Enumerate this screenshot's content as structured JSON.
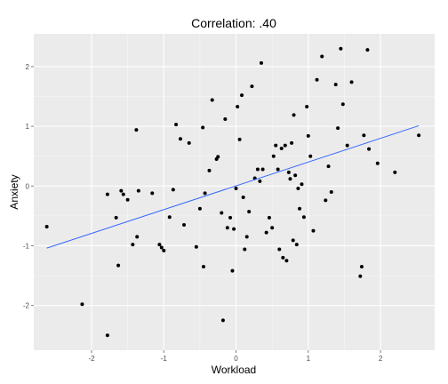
{
  "chart_data": {
    "type": "scatter",
    "title": "Correlation: .40",
    "xlabel": "Workload",
    "ylabel": "Anxiety",
    "xlim": [
      -2.8,
      2.75
    ],
    "ylim": [
      -2.75,
      2.55
    ],
    "x_ticks": [
      -2,
      -1,
      0,
      1,
      2
    ],
    "x_tick_labels": [
      "-2",
      "-1",
      "0",
      "1",
      "2"
    ],
    "y_ticks": [
      -2,
      -1,
      0,
      1,
      2
    ],
    "y_tick_labels": [
      "-2",
      "-1",
      "0",
      "1",
      "2"
    ],
    "grid": true,
    "background_color": "#ebebeb",
    "grid_color": "#ffffff",
    "point_color": "#000000",
    "fit_color": "#3366ff",
    "fit_line": {
      "x": [
        -2.62,
        2.53
      ],
      "y": [
        -1.04,
        1.01
      ]
    },
    "points": [
      [
        -2.62,
        -0.68
      ],
      [
        -2.13,
        -1.98
      ],
      [
        -1.78,
        -2.5
      ],
      [
        -1.78,
        -0.14
      ],
      [
        -1.66,
        -0.53
      ],
      [
        -1.63,
        -1.33
      ],
      [
        -1.59,
        -0.08
      ],
      [
        -1.56,
        -0.14
      ],
      [
        -1.5,
        -0.23
      ],
      [
        -1.43,
        -0.98
      ],
      [
        -1.38,
        0.94
      ],
      [
        -1.37,
        -0.85
      ],
      [
        -1.35,
        -0.08
      ],
      [
        -1.16,
        -0.12
      ],
      [
        -1.06,
        -0.98
      ],
      [
        -1.03,
        -1.03
      ],
      [
        -1.0,
        -1.08
      ],
      [
        -0.92,
        -0.52
      ],
      [
        -0.87,
        -0.06
      ],
      [
        -0.83,
        1.03
      ],
      [
        -0.77,
        0.79
      ],
      [
        -0.72,
        -0.65
      ],
      [
        -0.65,
        0.72
      ],
      [
        -0.55,
        -1.02
      ],
      [
        -0.5,
        -0.38
      ],
      [
        -0.46,
        0.98
      ],
      [
        -0.45,
        -1.35
      ],
      [
        -0.43,
        -0.12
      ],
      [
        -0.37,
        0.26
      ],
      [
        -0.33,
        1.44
      ],
      [
        -0.27,
        0.45
      ],
      [
        -0.25,
        0.49
      ],
      [
        -0.2,
        -0.45
      ],
      [
        -0.18,
        -2.25
      ],
      [
        -0.15,
        1.12
      ],
      [
        -0.12,
        -0.7
      ],
      [
        -0.08,
        -0.53
      ],
      [
        -0.05,
        -1.42
      ],
      [
        -0.03,
        -0.72
      ],
      [
        0.0,
        -0.04
      ],
      [
        0.02,
        1.33
      ],
      [
        0.05,
        0.78
      ],
      [
        0.08,
        1.52
      ],
      [
        0.1,
        -0.19
      ],
      [
        0.12,
        -1.06
      ],
      [
        0.15,
        -0.85
      ],
      [
        0.18,
        -0.43
      ],
      [
        0.22,
        1.67
      ],
      [
        0.26,
        0.13
      ],
      [
        0.3,
        0.28
      ],
      [
        0.33,
        0.08
      ],
      [
        0.35,
        2.06
      ],
      [
        0.37,
        0.28
      ],
      [
        0.42,
        -0.78
      ],
      [
        0.46,
        -0.53
      ],
      [
        0.5,
        -0.7
      ],
      [
        0.52,
        0.5
      ],
      [
        0.55,
        0.68
      ],
      [
        0.58,
        0.28
      ],
      [
        0.6,
        -1.06
      ],
      [
        0.63,
        0.63
      ],
      [
        0.65,
        -1.2
      ],
      [
        0.68,
        0.68
      ],
      [
        0.7,
        -1.25
      ],
      [
        0.73,
        0.23
      ],
      [
        0.75,
        0.12
      ],
      [
        0.77,
        0.72
      ],
      [
        0.79,
        -0.91
      ],
      [
        0.8,
        1.19
      ],
      [
        0.82,
        0.18
      ],
      [
        0.84,
        -0.98
      ],
      [
        0.86,
        -0.04
      ],
      [
        0.88,
        -0.38
      ],
      [
        0.91,
        0.03
      ],
      [
        0.94,
        -0.52
      ],
      [
        0.98,
        1.33
      ],
      [
        1.0,
        0.84
      ],
      [
        1.03,
        0.5
      ],
      [
        1.07,
        -0.75
      ],
      [
        1.12,
        1.78
      ],
      [
        1.19,
        2.17
      ],
      [
        1.24,
        -0.24
      ],
      [
        1.28,
        0.33
      ],
      [
        1.32,
        -0.1
      ],
      [
        1.38,
        1.7
      ],
      [
        1.41,
        0.97
      ],
      [
        1.45,
        2.3
      ],
      [
        1.48,
        1.37
      ],
      [
        1.54,
        0.68
      ],
      [
        1.6,
        1.74
      ],
      [
        1.72,
        -1.51
      ],
      [
        1.74,
        -1.35
      ],
      [
        1.77,
        0.85
      ],
      [
        1.82,
        2.28
      ],
      [
        1.84,
        0.62
      ],
      [
        1.96,
        0.38
      ],
      [
        2.2,
        0.23
      ],
      [
        2.53,
        0.85
      ]
    ]
  }
}
